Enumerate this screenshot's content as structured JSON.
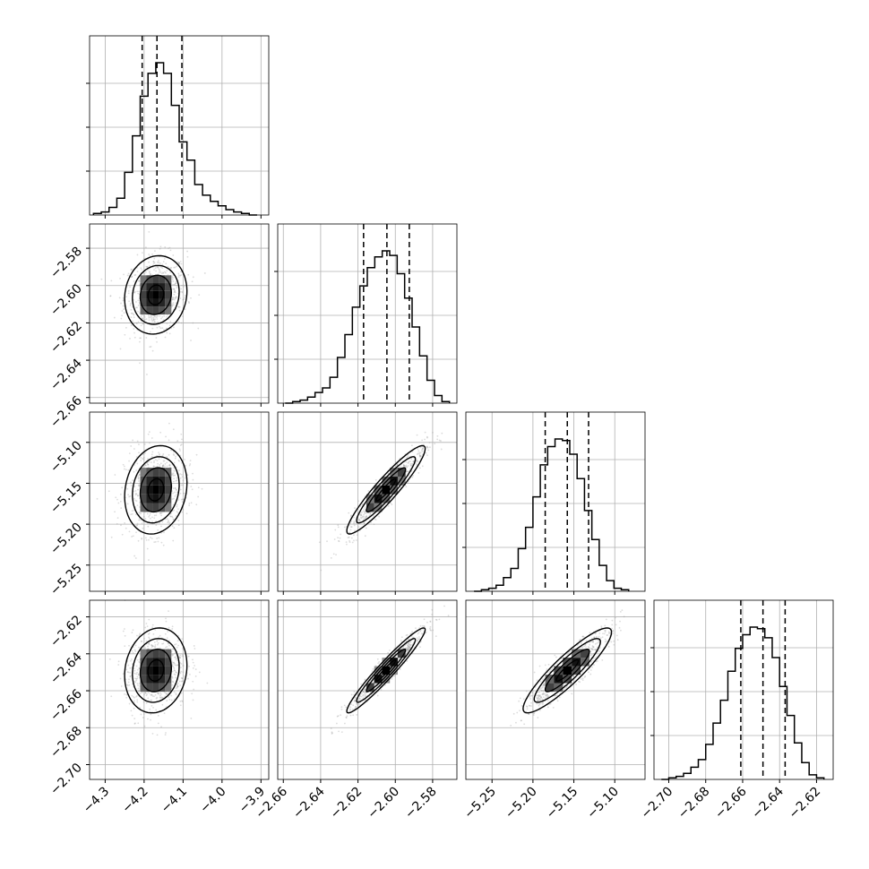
{
  "chart_data": {
    "type": "corner",
    "n_params": 4,
    "params": [
      {
        "xlim": [
          -4.34,
          -3.88
        ],
        "xticks": [
          -4.3,
          -4.2,
          -4.1,
          -4.0,
          -3.9
        ],
        "xtick_labels": [
          "−4.3",
          "−4.2",
          "−4.1",
          "−4.0",
          "−3.9"
        ],
        "yticks": [],
        "ytick_labels": [],
        "quantiles": [
          -4.205,
          -4.167,
          -4.103
        ],
        "median": -4.17,
        "std": 0.04,
        "hist_edges": [
          -4.33,
          -4.31,
          -4.29,
          -4.27,
          -4.25,
          -4.23,
          -4.21,
          -4.19,
          -4.17,
          -4.15,
          -4.13,
          -4.11,
          -4.09,
          -4.07,
          -4.05,
          -4.03,
          -4.01,
          -3.99,
          -3.97,
          -3.95,
          -3.93,
          -3.91
        ],
        "hist_counts": [
          0.01,
          0.02,
          0.05,
          0.11,
          0.28,
          0.52,
          0.78,
          0.93,
          1.0,
          0.93,
          0.72,
          0.48,
          0.36,
          0.2,
          0.13,
          0.09,
          0.06,
          0.035,
          0.02,
          0.01,
          0.0
        ]
      },
      {
        "xlim": [
          -2.663,
          -2.567
        ],
        "xticks": [
          -2.66,
          -2.64,
          -2.62,
          -2.6,
          -2.58
        ],
        "xtick_labels": [
          "−2.66",
          "−2.64",
          "−2.62",
          "−2.60",
          "−2.58"
        ],
        "ylim": [
          -2.663,
          -2.567
        ],
        "yticks": [
          -2.58,
          -2.6,
          -2.62,
          -2.64,
          -2.66
        ],
        "ytick_labels": [
          "−2.58",
          "−2.60",
          "−2.62",
          "−2.64",
          "−2.66"
        ],
        "quantiles": [
          -2.617,
          -2.6045,
          -2.5925
        ],
        "median": -2.605,
        "std": 0.0105,
        "hist_edges": [
          -2.659,
          -2.655,
          -2.651,
          -2.647,
          -2.643,
          -2.639,
          -2.635,
          -2.631,
          -2.627,
          -2.623,
          -2.619,
          -2.615,
          -2.611,
          -2.607,
          -2.603,
          -2.599,
          -2.595,
          -2.591,
          -2.587,
          -2.583,
          -2.579,
          -2.575,
          -2.571
        ],
        "hist_counts": [
          0.0,
          0.01,
          0.02,
          0.04,
          0.07,
          0.1,
          0.17,
          0.3,
          0.45,
          0.63,
          0.77,
          0.89,
          0.96,
          1.0,
          0.97,
          0.85,
          0.69,
          0.5,
          0.31,
          0.15,
          0.05,
          0.01
        ]
      },
      {
        "xlim": [
          -5.282,
          -5.063
        ],
        "xticks": [
          -5.25,
          -5.2,
          -5.15,
          -5.1
        ],
        "xtick_labels": [
          "−5.25",
          "−5.20",
          "−5.15",
          "−5.10"
        ],
        "ylim": [
          -5.282,
          -5.063
        ],
        "yticks": [
          -5.1,
          -5.15,
          -5.2,
          -5.25
        ],
        "ytick_labels": [
          "−5.10",
          "−5.15",
          "−5.20",
          "−5.25"
        ],
        "quantiles": [
          -5.185,
          -5.158,
          -5.132
        ],
        "median": -5.158,
        "std": 0.027,
        "hist_edges": [
          -5.272,
          -5.263,
          -5.254,
          -5.245,
          -5.236,
          -5.227,
          -5.218,
          -5.209,
          -5.2,
          -5.191,
          -5.182,
          -5.173,
          -5.164,
          -5.155,
          -5.146,
          -5.137,
          -5.128,
          -5.119,
          -5.11,
          -5.101,
          -5.092,
          -5.083
        ],
        "hist_counts": [
          0.0,
          0.01,
          0.02,
          0.04,
          0.09,
          0.15,
          0.28,
          0.42,
          0.62,
          0.83,
          0.95,
          1.0,
          0.99,
          0.9,
          0.74,
          0.53,
          0.34,
          0.17,
          0.07,
          0.02,
          0.01
        ]
      },
      {
        "xlim": [
          -2.708,
          -2.611
        ],
        "xticks": [
          -2.7,
          -2.68,
          -2.66,
          -2.64,
          -2.62
        ],
        "xtick_labels": [
          "−2.70",
          "−2.68",
          "−2.66",
          "−2.64",
          "−2.62"
        ],
        "ylim": [
          -2.708,
          -2.611
        ],
        "yticks": [
          -2.62,
          -2.64,
          -2.66,
          -2.68,
          -2.7
        ],
        "ytick_labels": [
          "−2.62",
          "−2.64",
          "−2.66",
          "−2.68",
          "−2.70"
        ],
        "quantiles": [
          -2.661,
          -2.649,
          -2.637
        ],
        "median": -2.649,
        "std": 0.0115,
        "hist_edges": [
          -2.704,
          -2.7,
          -2.696,
          -2.692,
          -2.688,
          -2.684,
          -2.68,
          -2.676,
          -2.672,
          -2.668,
          -2.664,
          -2.66,
          -2.656,
          -2.652,
          -2.648,
          -2.644,
          -2.64,
          -2.636,
          -2.632,
          -2.628,
          -2.624,
          -2.62,
          -2.616
        ],
        "hist_counts": [
          0.0,
          0.01,
          0.02,
          0.04,
          0.08,
          0.13,
          0.23,
          0.37,
          0.52,
          0.71,
          0.86,
          0.95,
          1.0,
          0.99,
          0.93,
          0.8,
          0.61,
          0.42,
          0.24,
          0.11,
          0.03,
          0.01
        ]
      }
    ],
    "correlations": {
      "1_0": 0.1,
      "2_0": 0.15,
      "2_1": 0.93,
      "3_0": 0.12,
      "3_1": 0.96,
      "3_2": 0.9
    },
    "contour_levels_sigma": [
      0.5,
      1.0,
      1.5,
      2.0
    ],
    "grid": true,
    "colors": {
      "line": "#000000",
      "points": "#9a9a9a",
      "grid": "#b0b0b0"
    }
  }
}
